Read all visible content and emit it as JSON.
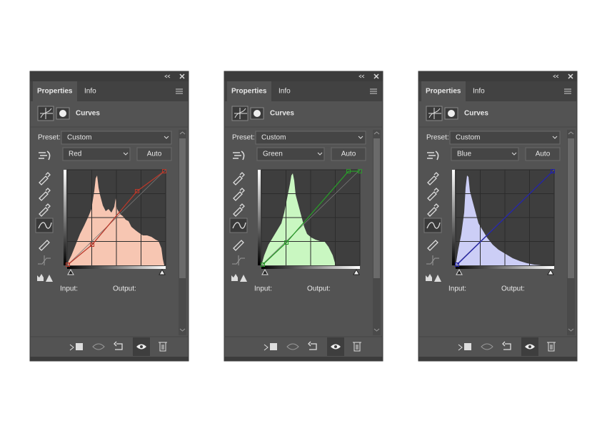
{
  "panels": [
    {
      "tabs": [
        "Properties",
        "Info"
      ],
      "title": "Curves",
      "preset_label": "Preset:",
      "preset": "Custom",
      "channel": "Red",
      "auto": "Auto",
      "input_label": "Input:",
      "output_label": "Output:",
      "histogram_color": "#f7c6b2",
      "curve_color": "#b8382a"
    },
    {
      "tabs": [
        "Properties",
        "Info"
      ],
      "title": "Curves",
      "preset_label": "Preset:",
      "preset": "Custom",
      "channel": "Green",
      "auto": "Auto",
      "input_label": "Input:",
      "output_label": "Output:",
      "histogram_color": "#c9f7c1",
      "curve_color": "#2a9a2a"
    },
    {
      "tabs": [
        "Properties",
        "Info"
      ],
      "title": "Curves",
      "preset_label": "Preset:",
      "preset": "Custom",
      "channel": "Blue",
      "auto": "Auto",
      "input_label": "Input:",
      "output_label": "Output:",
      "histogram_color": "#ccceF6",
      "curve_color": "#2222aa"
    }
  ]
}
